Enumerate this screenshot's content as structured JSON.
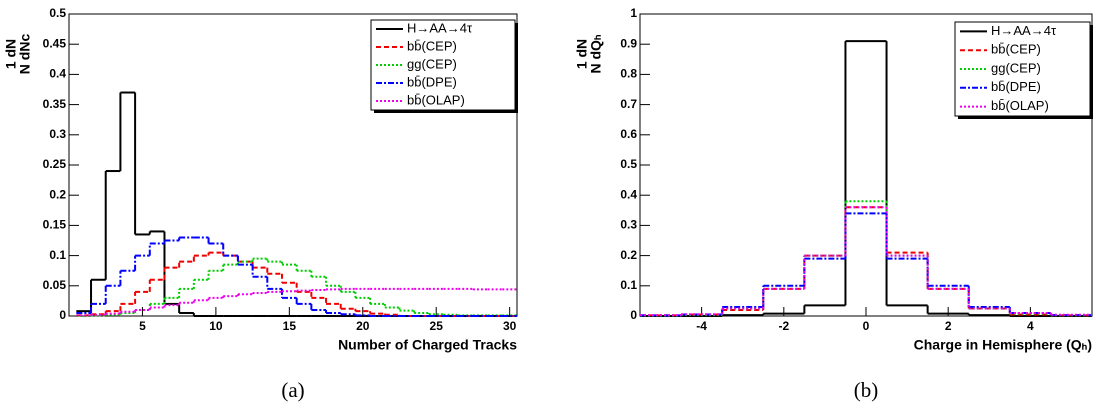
{
  "chart_data": [
    {
      "type": "histogram",
      "caption": "(a)",
      "xlabel": "Number of Charged Tracks",
      "ylabel": [
        "1 dN",
        "N dNc"
      ],
      "bins": [
        0.5,
        1.5,
        2.5,
        3.5,
        4.5,
        5.5,
        6.5,
        7.5,
        8.5,
        9.5,
        10.5,
        11.5,
        12.5,
        13.5,
        14.5,
        15.5,
        16.5,
        17.5,
        18.5,
        19.5,
        20.5,
        21.5,
        22.5,
        23.5,
        24.5,
        25.5,
        26.5,
        27.5,
        28.5,
        29.5,
        30.5
      ],
      "xlim": [
        0,
        30.5
      ],
      "xticks": [
        5,
        10,
        15,
        20,
        25,
        30
      ],
      "ylim": [
        0,
        0.5
      ],
      "yticks": [
        0,
        0.05,
        0.1,
        0.15,
        0.2,
        0.25,
        0.3,
        0.35,
        0.4,
        0.45,
        0.5
      ],
      "legend": "upper right",
      "series": [
        {
          "name": "H→AA→4τ",
          "color": "#000000",
          "linestyle": "solid",
          "values": [
            0.008,
            0.06,
            0.24,
            0.37,
            0.135,
            0.14,
            0.02,
            0.005,
            0,
            0,
            0,
            0,
            0,
            0,
            0,
            0,
            0,
            0,
            0,
            0,
            0,
            0,
            0,
            0,
            0,
            0,
            0,
            0,
            0,
            0
          ]
        },
        {
          "name": "bb̄(CEP)",
          "color": "#ee0000",
          "linestyle": "dashed",
          "values": [
            0.001,
            0.003,
            0.008,
            0.02,
            0.04,
            0.06,
            0.08,
            0.09,
            0.1,
            0.105,
            0.1,
            0.09,
            0.08,
            0.07,
            0.055,
            0.04,
            0.03,
            0.02,
            0.012,
            0.008,
            0.004,
            0.002,
            0,
            0,
            0,
            0,
            0,
            0,
            0,
            0
          ]
        },
        {
          "name": "gg(CEP)",
          "color": "#00cc00",
          "linestyle": "dotted",
          "values": [
            0,
            0.001,
            0.002,
            0.005,
            0.01,
            0.02,
            0.03,
            0.045,
            0.06,
            0.075,
            0.085,
            0.09,
            0.095,
            0.09,
            0.085,
            0.075,
            0.065,
            0.05,
            0.04,
            0.03,
            0.02,
            0.014,
            0.009,
            0.005,
            0.003,
            0.002,
            0.001,
            0.001,
            0.001,
            0.001
          ]
        },
        {
          "name": "bb̄(DPE)",
          "color": "#0000ff",
          "linestyle": "dashdot",
          "values": [
            0.005,
            0.02,
            0.05,
            0.075,
            0.1,
            0.12,
            0.125,
            0.13,
            0.13,
            0.12,
            0.1,
            0.085,
            0.065,
            0.045,
            0.03,
            0.02,
            0.01,
            0.005,
            0.003,
            0.001,
            0,
            0,
            0,
            0,
            0,
            0,
            0,
            0,
            0,
            0
          ]
        },
        {
          "name": "bb̄(OLAP)",
          "color": "#ee00ee",
          "linestyle": "dotted",
          "values": [
            0.001,
            0.002,
            0.004,
            0.007,
            0.01,
            0.014,
            0.018,
            0.022,
            0.026,
            0.03,
            0.033,
            0.036,
            0.038,
            0.04,
            0.041,
            0.042,
            0.043,
            0.044,
            0.045,
            0.045,
            0.045,
            0.045,
            0.045,
            0.045,
            0.045,
            0.045,
            0.045,
            0.044,
            0.044,
            0.044
          ]
        }
      ]
    },
    {
      "type": "histogram",
      "caption": "(b)",
      "xlabel": "Charge in Hemisphere (Qₕ)",
      "ylabel": [
        "1 dN",
        "N dQₕ"
      ],
      "bins": [
        -5.5,
        -4.5,
        -3.5,
        -2.5,
        -1.5,
        -0.5,
        0.5,
        1.5,
        2.5,
        3.5,
        4.5,
        5.5
      ],
      "xlim": [
        -5.5,
        5.5
      ],
      "xticks": [
        -4,
        -2,
        0,
        2,
        4
      ],
      "ylim": [
        0,
        1
      ],
      "yticks": [
        0,
        0.1,
        0.2,
        0.3,
        0.4,
        0.5,
        0.6,
        0.7,
        0.8,
        0.9,
        1
      ],
      "legend": "upper right",
      "series": [
        {
          "name": "H→AA→4τ",
          "color": "#000000",
          "linestyle": "solid",
          "values": [
            0,
            0,
            0.003,
            0.008,
            0.035,
            0.91,
            0.035,
            0.008,
            0.003,
            0,
            0
          ]
        },
        {
          "name": "bb̄(CEP)",
          "color": "#ee0000",
          "linestyle": "dashed",
          "values": [
            0.002,
            0.005,
            0.02,
            0.09,
            0.2,
            0.36,
            0.21,
            0.09,
            0.025,
            0.005,
            0.002
          ]
        },
        {
          "name": "gg(CEP)",
          "color": "#00cc00",
          "linestyle": "dotted",
          "values": [
            0.001,
            0.003,
            0.025,
            0.09,
            0.2,
            0.38,
            0.2,
            0.09,
            0.025,
            0.008,
            0.002
          ]
        },
        {
          "name": "bb̄(DPE)",
          "color": "#0000ff",
          "linestyle": "dashdot",
          "values": [
            0.002,
            0.005,
            0.03,
            0.1,
            0.19,
            0.34,
            0.19,
            0.1,
            0.03,
            0.01,
            0.003
          ]
        },
        {
          "name": "bb̄(OLAP)",
          "color": "#ee00ee",
          "linestyle": "dotted",
          "values": [
            0.003,
            0.006,
            0.025,
            0.09,
            0.2,
            0.36,
            0.2,
            0.09,
            0.025,
            0.01,
            0.004
          ]
        }
      ]
    }
  ]
}
